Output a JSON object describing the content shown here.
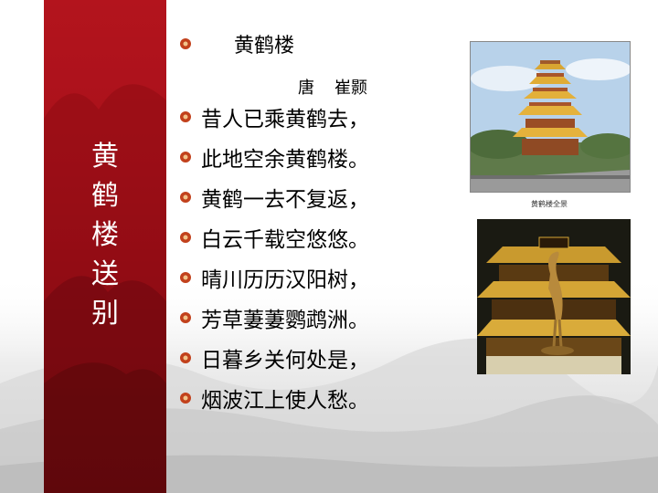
{
  "vertical_title": [
    "黄",
    "鹤",
    "楼",
    "送",
    "别"
  ],
  "poem": {
    "title": "黄鹤楼",
    "dynasty": "唐",
    "author": "崔颢",
    "lines": [
      "昔人已乘黄鹤去，",
      "此地空余黄鹤楼。",
      "黄鹤一去不复返，",
      "白云千载空悠悠。",
      "晴川历历汉阳树，",
      "芳草萋萋鹦鹉洲。",
      "日暮乡关何处是，",
      "烟波江上使人愁。"
    ]
  },
  "photo_caption": "黄鹤楼全景",
  "colors": {
    "red_band": "#a8101a",
    "bullet": "#c2411c",
    "sky": "#b8d2ea",
    "night_sky": "#1a1a12"
  },
  "icons": {
    "bullet": "flower-bullet-icon",
    "photo_tower_day": "yellow-crane-tower-photo",
    "photo_tower_night": "yellow-crane-tower-crane-statue-photo"
  }
}
